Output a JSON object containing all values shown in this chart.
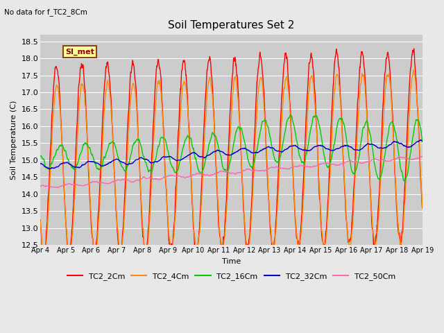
{
  "title": "Soil Temperatures Set 2",
  "top_left_note": "No data for f_TC2_8Cm",
  "xlabel": "Time",
  "ylabel": "Soil Temperature (C)",
  "ylim": [
    12.5,
    18.7
  ],
  "xlim": [
    0,
    15
  ],
  "x_tick_labels": [
    "Apr 4",
    "Apr 5",
    "Apr 6",
    "Apr 7",
    "Apr 8",
    "Apr 9",
    "Apr 10",
    "Apr 11",
    "Apr 12",
    "Apr 13",
    "Apr 14",
    "Apr 15",
    "Apr 16",
    "Apr 17",
    "Apr 18",
    "Apr 19"
  ],
  "x_tick_positions": [
    0,
    1,
    2,
    3,
    4,
    5,
    6,
    7,
    8,
    9,
    10,
    11,
    12,
    13,
    14,
    15
  ],
  "y_ticks": [
    12.5,
    13.0,
    13.5,
    14.0,
    14.5,
    15.0,
    15.5,
    16.0,
    16.5,
    17.0,
    17.5,
    18.0,
    18.5
  ],
  "background_color": "#e8e8e8",
  "plot_bg_color": "#cccccc",
  "grid_color": "#ffffff",
  "legend_label": "SI_met",
  "legend_box_color": "#ffff99",
  "legend_box_border": "#8b4513",
  "series_colors": {
    "TC2_2Cm": "#ff0000",
    "TC2_4Cm": "#ff8c00",
    "TC2_16Cm": "#00cc00",
    "TC2_32Cm": "#0000cc",
    "TC2_50Cm": "#ff69b4"
  },
  "series_linewidth": 1.0
}
